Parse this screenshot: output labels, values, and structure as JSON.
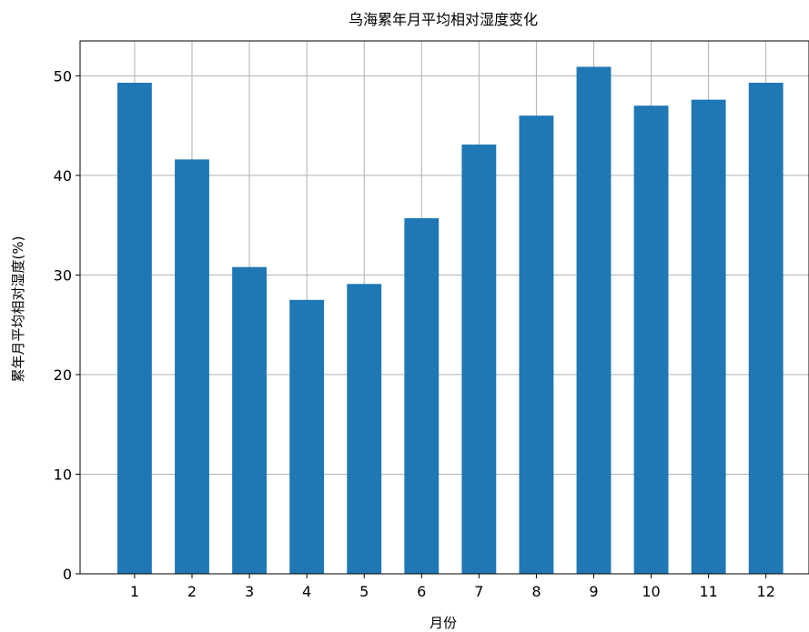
{
  "chart_data": {
    "type": "bar",
    "title": "乌海累年月平均相对湿度变化",
    "xlabel": "月份",
    "ylabel": "累年月平均相对湿度(%)",
    "categories": [
      "1",
      "2",
      "3",
      "4",
      "5",
      "6",
      "7",
      "8",
      "9",
      "10",
      "11",
      "12"
    ],
    "values": [
      49.3,
      41.6,
      30.8,
      27.5,
      29.1,
      35.7,
      43.1,
      46.0,
      50.9,
      47.0,
      47.6,
      49.3
    ],
    "ylim": [
      0,
      53.5
    ],
    "xlim": [
      0.05,
      12.75
    ],
    "yticks": [
      0,
      10,
      20,
      30,
      40,
      50
    ],
    "grid": true,
    "bar_color": "#1f77b4"
  }
}
